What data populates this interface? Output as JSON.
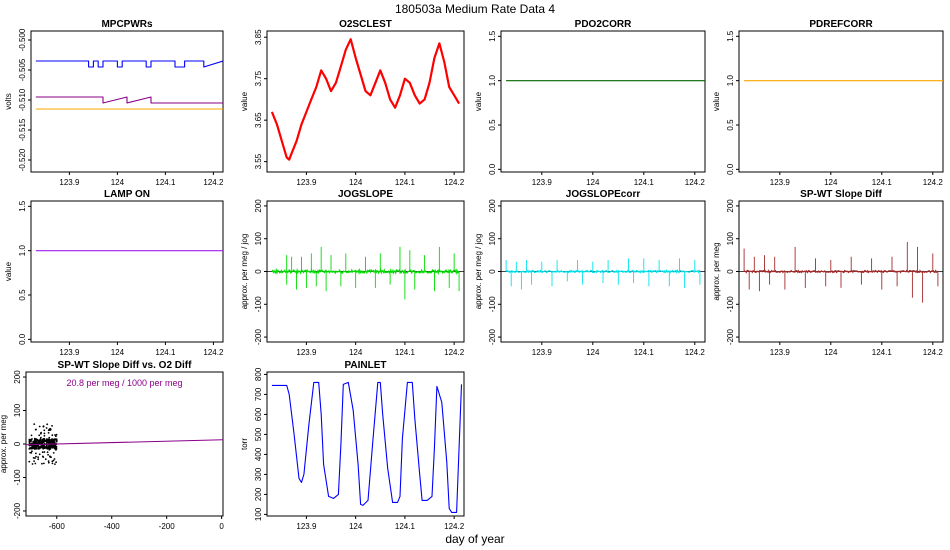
{
  "title": "180503a   Medium Rate Data 4",
  "xlabel_bottom": "day of year",
  "chart_data": [
    {
      "type": "line",
      "title": "MPCPWRs",
      "ylabel": "volts",
      "xlim": [
        123.82,
        124.22
      ],
      "ylim": [
        -0.522,
        -0.4985
      ],
      "xticks": [
        123.9,
        124.0,
        124.1,
        124.2
      ],
      "yticks": [
        -0.52,
        -0.515,
        -0.51,
        -0.505,
        -0.5
      ],
      "ytick_labels": [
        "-0.520",
        "-0.515",
        "-0.510",
        "-0.505",
        "-0.500"
      ],
      "series": [
        {
          "color": "#0000ff",
          "x": [
            123.83,
            123.94,
            123.94,
            123.95,
            123.95,
            123.96,
            123.96,
            123.97,
            123.97,
            124.0,
            124.0,
            124.01,
            124.01,
            124.06,
            124.06,
            124.07,
            124.07,
            124.12,
            124.12,
            124.14,
            124.14,
            124.18,
            124.18,
            124.22
          ],
          "y": [
            -0.5035,
            -0.5035,
            -0.5045,
            -0.5045,
            -0.5035,
            -0.5035,
            -0.5045,
            -0.5045,
            -0.5035,
            -0.5035,
            -0.5045,
            -0.5045,
            -0.5035,
            -0.5035,
            -0.5045,
            -0.5045,
            -0.5035,
            -0.5035,
            -0.5045,
            -0.5045,
            -0.5035,
            -0.5035,
            -0.5045,
            -0.5035
          ]
        },
        {
          "color": "#8b008b",
          "x": [
            123.83,
            123.97,
            123.97,
            124.02,
            124.02,
            124.07,
            124.07,
            124.22
          ],
          "y": [
            -0.5095,
            -0.5095,
            -0.5105,
            -0.5095,
            -0.5105,
            -0.5095,
            -0.5105,
            -0.5105
          ]
        },
        {
          "color": "#ffa500",
          "x": [
            123.83,
            124.22
          ],
          "y": [
            -0.5115,
            -0.5115
          ]
        }
      ]
    },
    {
      "type": "line",
      "title": "O2SCLEST",
      "ylabel": "value",
      "xlim": [
        123.82,
        124.22
      ],
      "ylim": [
        3.525,
        3.865
      ],
      "xticks": [
        123.9,
        124.0,
        124.1,
        124.2
      ],
      "yticks": [
        3.55,
        3.65,
        3.75,
        3.85
      ],
      "series": [
        {
          "color": "#ff0000",
          "x": [
            123.83,
            123.84,
            123.85,
            123.86,
            123.865,
            123.87,
            123.88,
            123.89,
            123.9,
            123.91,
            123.92,
            123.93,
            123.94,
            123.95,
            123.96,
            123.97,
            123.98,
            123.99,
            124.0,
            124.01,
            124.02,
            124.03,
            124.04,
            124.05,
            124.06,
            124.07,
            124.08,
            124.09,
            124.1,
            124.11,
            124.12,
            124.13,
            124.14,
            124.15,
            124.16,
            124.17,
            124.18,
            124.19,
            124.2,
            124.21
          ],
          "y": [
            3.67,
            3.64,
            3.6,
            3.56,
            3.555,
            3.57,
            3.6,
            3.64,
            3.67,
            3.7,
            3.73,
            3.77,
            3.75,
            3.72,
            3.74,
            3.78,
            3.82,
            3.845,
            3.8,
            3.76,
            3.72,
            3.71,
            3.74,
            3.77,
            3.74,
            3.7,
            3.68,
            3.71,
            3.75,
            3.74,
            3.71,
            3.69,
            3.7,
            3.74,
            3.8,
            3.835,
            3.79,
            3.73,
            3.71,
            3.69
          ]
        }
      ]
    },
    {
      "type": "line",
      "title": "PDO2CORR",
      "ylabel": "value",
      "xlim": [
        123.82,
        124.22
      ],
      "ylim": [
        -0.03,
        1.56
      ],
      "xticks": [
        123.9,
        124.0,
        124.1,
        124.2
      ],
      "yticks": [
        0.0,
        0.5,
        1.0,
        1.5
      ],
      "ytick_labels": [
        "0.0",
        "0.5",
        "1.0",
        "1.5"
      ],
      "series": [
        {
          "color": "#006400",
          "x": [
            123.83,
            124.22
          ],
          "y": [
            1.0,
            1.0
          ]
        }
      ]
    },
    {
      "type": "line",
      "title": "PDREFCORR",
      "ylabel": "value",
      "xlim": [
        123.82,
        124.22
      ],
      "ylim": [
        -0.03,
        1.56
      ],
      "xticks": [
        123.9,
        124.0,
        124.1,
        124.2
      ],
      "yticks": [
        0.0,
        0.5,
        1.0,
        1.5
      ],
      "ytick_labels": [
        "0.0",
        "0.5",
        "1.0",
        "1.5"
      ],
      "series": [
        {
          "color": "#ffa500",
          "x": [
            123.83,
            124.22
          ],
          "y": [
            1.0,
            1.0
          ]
        }
      ]
    },
    {
      "type": "line",
      "title": "LAMP ON",
      "ylabel": "value",
      "xlim": [
        123.82,
        124.22
      ],
      "ylim": [
        -0.03,
        1.56
      ],
      "xticks": [
        123.9,
        124.0,
        124.1,
        124.2
      ],
      "yticks": [
        0.0,
        0.5,
        1.0,
        1.5
      ],
      "ytick_labels": [
        "0.0",
        "0.5",
        "1.0",
        "1.5"
      ],
      "series": [
        {
          "color": "#a020f0",
          "x": [
            123.83,
            124.22
          ],
          "y": [
            1.0,
            1.0
          ]
        }
      ]
    },
    {
      "type": "line",
      "title": "JOGSLOPE",
      "ylabel": "approx. per meg / jog",
      "xlim": [
        123.82,
        124.22
      ],
      "ylim": [
        -215,
        215
      ],
      "xticks": [
        123.9,
        124.0,
        124.1,
        124.2
      ],
      "yticks": [
        -200,
        -100,
        0,
        100,
        200
      ],
      "hline": 0,
      "series": [
        {
          "color": "#00dd00",
          "band": 10,
          "spikes": [
            [
              123.86,
              50
            ],
            [
              123.86,
              -40
            ],
            [
              123.87,
              45
            ],
            [
              123.88,
              -55
            ],
            [
              123.89,
              45
            ],
            [
              123.9,
              -50
            ],
            [
              123.91,
              55
            ],
            [
              123.92,
              -45
            ],
            [
              123.93,
              75
            ],
            [
              123.94,
              -60
            ],
            [
              123.95,
              50
            ],
            [
              123.97,
              -45
            ],
            [
              123.98,
              55
            ],
            [
              124.0,
              -50
            ],
            [
              124.02,
              45
            ],
            [
              124.04,
              -50
            ],
            [
              124.05,
              55
            ],
            [
              124.07,
              -40
            ],
            [
              124.09,
              75
            ],
            [
              124.1,
              -85
            ],
            [
              124.11,
              65
            ],
            [
              124.12,
              -55
            ],
            [
              124.14,
              50
            ],
            [
              124.16,
              -60
            ],
            [
              124.17,
              75
            ],
            [
              124.19,
              -50
            ],
            [
              124.2,
              55
            ],
            [
              124.21,
              -60
            ]
          ],
          "x_range": [
            123.83,
            124.21
          ]
        }
      ]
    },
    {
      "type": "line",
      "title": "JOGSLOPEcorr",
      "ylabel": "approx. per meg / jog",
      "xlim": [
        123.82,
        124.22
      ],
      "ylim": [
        -215,
        215
      ],
      "xticks": [
        123.9,
        124.0,
        124.1,
        124.2
      ],
      "yticks": [
        -200,
        -100,
        0,
        100,
        200
      ],
      "hline": 0,
      "series": [
        {
          "color": "#00e5ee",
          "band": 6,
          "spikes": [
            [
              123.83,
              35
            ],
            [
              123.84,
              -45
            ],
            [
              123.85,
              30
            ],
            [
              123.86,
              -55
            ],
            [
              123.87,
              35
            ],
            [
              123.88,
              -40
            ],
            [
              123.9,
              30
            ],
            [
              123.92,
              -45
            ],
            [
              123.93,
              35
            ],
            [
              123.95,
              -30
            ],
            [
              123.97,
              35
            ],
            [
              123.98,
              -40
            ],
            [
              124.0,
              30
            ],
            [
              124.02,
              -35
            ],
            [
              124.03,
              35
            ],
            [
              124.05,
              -40
            ],
            [
              124.07,
              40
            ],
            [
              124.08,
              -35
            ],
            [
              124.1,
              40
            ],
            [
              124.11,
              -45
            ],
            [
              124.13,
              35
            ],
            [
              124.15,
              -45
            ],
            [
              124.17,
              40
            ],
            [
              124.18,
              -50
            ],
            [
              124.2,
              35
            ],
            [
              124.21,
              -40
            ]
          ],
          "x_range": [
            123.83,
            124.21
          ]
        }
      ]
    },
    {
      "type": "line",
      "title": "SP-WT Slope Diff",
      "ylabel": "approx. per meg",
      "xlim": [
        123.82,
        124.22
      ],
      "ylim": [
        -215,
        215
      ],
      "xticks": [
        123.9,
        124.0,
        124.1,
        124.2
      ],
      "yticks": [
        -200,
        -100,
        0,
        100,
        200
      ],
      "hline": 0,
      "series": [
        {
          "color": "#a52a2a",
          "band": 6,
          "spikes": [
            [
              123.83,
              70
            ],
            [
              123.84,
              -55
            ],
            [
              123.85,
              45
            ],
            [
              123.86,
              -60
            ],
            [
              123.87,
              50
            ],
            [
              123.88,
              -40
            ],
            [
              123.89,
              45
            ],
            [
              123.91,
              -55
            ],
            [
              123.93,
              75
            ],
            [
              123.95,
              -50
            ],
            [
              123.97,
              40
            ],
            [
              123.99,
              -45
            ],
            [
              124.0,
              35
            ],
            [
              124.02,
              -50
            ],
            [
              124.04,
              45
            ],
            [
              124.06,
              -40
            ],
            [
              124.08,
              40
            ],
            [
              124.1,
              -55
            ],
            [
              124.12,
              45
            ],
            [
              124.13,
              -45
            ],
            [
              124.15,
              90
            ],
            [
              124.16,
              -80
            ],
            [
              124.17,
              75
            ],
            [
              124.18,
              -95
            ],
            [
              124.2,
              55
            ],
            [
              124.21,
              -45
            ]
          ],
          "x_range": [
            123.83,
            124.21
          ]
        }
      ]
    },
    {
      "type": "scatter",
      "title": "SP-WT Slope Diff vs. O2 Diff",
      "annotation": "20.8 per meg / 1000 per meg",
      "ylabel": "approx. per meg",
      "xlim": [
        -712,
        5
      ],
      "ylim": [
        -215,
        215
      ],
      "xticks": [
        -600,
        -400,
        -200,
        0
      ],
      "yticks": [
        -200,
        -100,
        0,
        100,
        200
      ],
      "points_color": "#000000",
      "points_region": {
        "x": [
          -700,
          -600
        ],
        "y_core": [
          -15,
          15
        ],
        "y_outer": [
          -60,
          60
        ]
      },
      "fit": {
        "color": "#8b008b",
        "slope": 0.0208,
        "intercept": 12.5,
        "x": [
          -712,
          5
        ]
      }
    },
    {
      "type": "line",
      "title": "PAINLET",
      "ylabel": "torr",
      "xlim": [
        123.82,
        124.22
      ],
      "ylim": [
        92,
        812
      ],
      "xticks": [
        123.9,
        124.0,
        124.1,
        124.2
      ],
      "yticks": [
        100,
        200,
        300,
        400,
        500,
        600,
        700,
        800
      ],
      "series": [
        {
          "color": "#0000ff",
          "x": [
            123.83,
            123.86,
            123.865,
            123.875,
            123.885,
            123.89,
            123.895,
            123.905,
            123.915,
            123.925,
            123.93,
            123.935,
            123.945,
            123.955,
            123.965,
            123.97,
            123.975,
            123.985,
            123.995,
            124.005,
            124.01,
            124.015,
            124.025,
            124.035,
            124.045,
            124.05,
            124.055,
            124.065,
            124.075,
            124.085,
            124.09,
            124.095,
            124.105,
            124.115,
            124.12,
            124.13,
            124.135,
            124.145,
            124.155,
            124.16,
            124.165,
            124.175,
            124.185,
            124.19,
            124.195,
            124.205,
            124.215
          ],
          "y": [
            745,
            745,
            700,
            500,
            280,
            260,
            300,
            550,
            760,
            760,
            600,
            350,
            190,
            180,
            200,
            450,
            750,
            760,
            620,
            350,
            150,
            145,
            170,
            470,
            760,
            760,
            600,
            330,
            160,
            160,
            190,
            480,
            760,
            760,
            580,
            300,
            170,
            170,
            190,
            430,
            740,
            660,
            360,
            130,
            110,
            110,
            750
          ]
        }
      ]
    }
  ]
}
